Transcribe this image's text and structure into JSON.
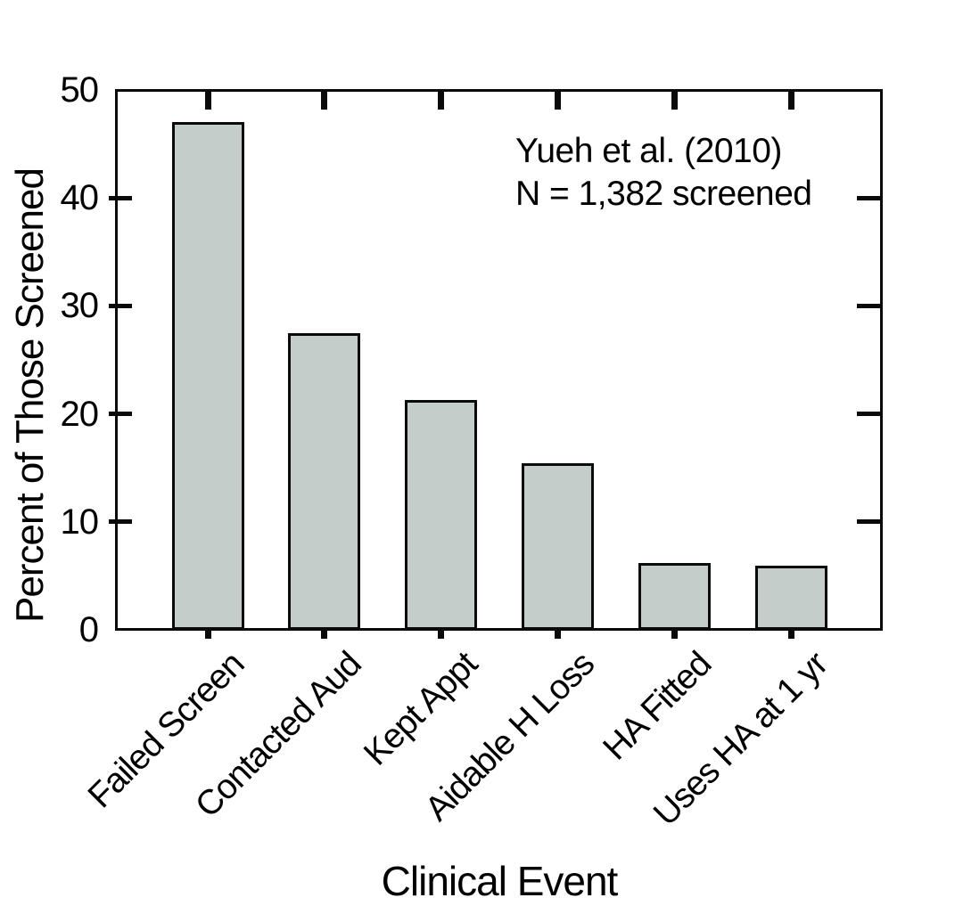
{
  "chart_data": {
    "type": "bar",
    "title": "",
    "categories": [
      "Failed Screen",
      "Contacted Aud",
      "Kept Appt",
      "Aidable H Loss",
      "HA Fitted",
      "Uses HA at 1 yr"
    ],
    "values": [
      47,
      27.5,
      21.3,
      15.4,
      6.2,
      5.9
    ],
    "xlabel": "Clinical Event",
    "ylabel": "Percent of Those Screened",
    "ylim": [
      0,
      50
    ],
    "y_ticks": [
      0,
      10,
      20,
      30,
      40,
      50
    ],
    "grid": false,
    "legend": "none",
    "bar_color": "#c5cdcb",
    "axis_color": "#0a0a0a",
    "annotation": {
      "line1": "Yueh et al. (2010)",
      "line2": "N = 1,382 screened"
    }
  }
}
